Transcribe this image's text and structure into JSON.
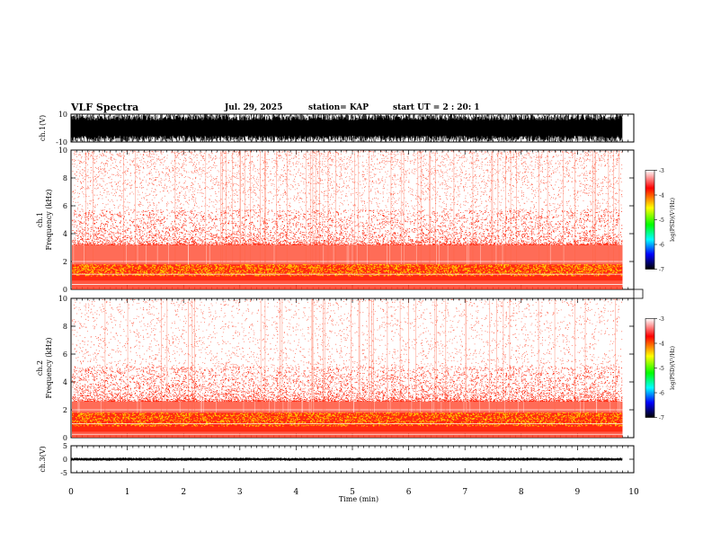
{
  "header": {
    "title": "VLF Spectra",
    "date": "Jul. 29, 2025",
    "station": "station= KAP",
    "start": "start UT = 2 : 20: 1"
  },
  "colors": {
    "spectra_low": "#ff3b1f",
    "spectra_band": "#ffcc00",
    "waveform": "#000000",
    "colorbar": [
      "#ffffff",
      "#ff0000",
      "#ffff00",
      "#00ff00",
      "#00ffff",
      "#0000ff",
      "#000000"
    ]
  },
  "chart_data": [
    {
      "type": "line",
      "panel": "ch1-waveform",
      "ylabel": "ch.1(V)",
      "ylim": [
        -10,
        10
      ],
      "y_ticks": [
        "10",
        "-10"
      ],
      "xlim": [
        0,
        10
      ],
      "data_extent_min": 9.8,
      "amplitude_range": [
        -10,
        10
      ]
    },
    {
      "type": "heatmap",
      "panel": "ch1-spectrogram",
      "ylabel": "ch.1\nFrequency (kHz)",
      "ylabel_line1": "ch.1",
      "ylabel_line2": "Frequency (kHz)",
      "ylim": [
        0,
        10
      ],
      "y_ticks": [
        "10",
        "8",
        "6",
        "4",
        "2",
        "0"
      ],
      "xlim": [
        0,
        10
      ],
      "data_extent_min": 9.8,
      "intense_band_khz": [
        0.6,
        1.8
      ],
      "moderate_band_khz": [
        1.8,
        3.2
      ],
      "colorbar": {
        "label": "log(PSD)(V²/Hz)",
        "ticks": [
          "-3",
          "-4",
          "-5",
          "-6",
          "-7"
        ],
        "range": [
          -7,
          -3
        ]
      }
    },
    {
      "type": "heatmap",
      "panel": "ch2-spectrogram",
      "ylabel": "ch.2\nFrequency (kHz)",
      "ylabel_line1": "ch.2",
      "ylabel_line2": "Frequency (kHz)",
      "ylim": [
        0,
        10
      ],
      "y_ticks": [
        "10",
        "8",
        "6",
        "4",
        "2",
        "0"
      ],
      "xlim": [
        0,
        10
      ],
      "data_extent_min": 9.8,
      "intense_band_khz": [
        0.4,
        1.8
      ],
      "moderate_band_khz": [
        1.8,
        2.6
      ],
      "colorbar": {
        "label": "log(PSD)(V²/Hz)",
        "ticks": [
          "-3",
          "-4",
          "-5",
          "-6",
          "-7"
        ],
        "range": [
          -7,
          -3
        ]
      }
    },
    {
      "type": "line",
      "panel": "ch3-waveform",
      "ylabel": "ch.3(V)",
      "ylim": [
        -5,
        5
      ],
      "y_ticks": [
        "5",
        "0",
        "-5"
      ],
      "xlim": [
        0,
        10
      ],
      "data_extent_min": 9.8,
      "amplitude_range": [
        -0.6,
        0.6
      ]
    }
  ],
  "xaxis": {
    "label": "Time (min)",
    "ticks": [
      "0",
      "1",
      "2",
      "3",
      "4",
      "5",
      "6",
      "7",
      "8",
      "9",
      "10"
    ]
  }
}
